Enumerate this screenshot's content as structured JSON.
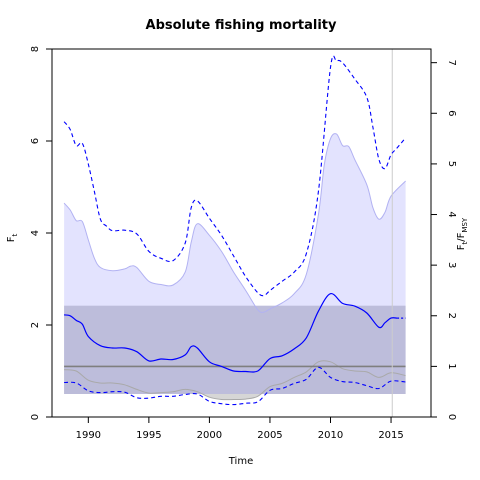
{
  "chart_data": {
    "type": "line",
    "title": "Absolute fishing mortality",
    "xlabel": "Time",
    "ylabel_left": {
      "main": "F",
      "sub": "t"
    },
    "ylabel_right": {
      "main": "F",
      "sub1": "t",
      "sep": "/F",
      "sub2": "MSY"
    },
    "xlim": [
      1987,
      2018.3
    ],
    "ylim_left": [
      0,
      8
    ],
    "ylim_right": [
      0,
      7.27
    ],
    "xticks": [
      "1990",
      "1995",
      "2000",
      "2005",
      "2010",
      "2015"
    ],
    "yticks_left": [
      "0",
      "2",
      "4",
      "6",
      "8"
    ],
    "yticks_right": [
      "0",
      "1",
      "2",
      "3",
      "4",
      "5",
      "6",
      "7"
    ],
    "grid": false,
    "vertical_line_x": 2015.1,
    "msy": {
      "value": 1.1,
      "lower": 0.5,
      "upper": 2.42,
      "end_x": 2016.2
    },
    "colors": {
      "median": "#0000ff",
      "ci_line": "#0000ff",
      "ci_fill": "#e3e3fe",
      "ci_fill_border": "#b2b2f2",
      "msy_band": "#bbbbd9",
      "msy_line": "#7f7f7f",
      "fmsy_fill": "#d6d6d6",
      "fmsy_border": "#a9a9a9",
      "vline": "#cccccc"
    },
    "series": [
      {
        "role": "median",
        "x": [
          1988,
          1988.5,
          1989,
          1989.5,
          1990,
          1991,
          1992,
          1993,
          1994,
          1995,
          1996,
          1997,
          1998,
          1998.5,
          1999,
          2000,
          2001,
          2002,
          2003,
          2004,
          2005,
          2006,
          2007,
          2008,
          2009,
          2010,
          2011,
          2012,
          2013,
          2014,
          2014.5,
          2015,
          2015.5,
          2016.2
        ],
        "values": [
          2.22,
          2.2,
          2.1,
          2.02,
          1.75,
          1.55,
          1.5,
          1.5,
          1.42,
          1.22,
          1.26,
          1.25,
          1.35,
          1.53,
          1.5,
          1.2,
          1.1,
          1.0,
          0.99,
          1.0,
          1.27,
          1.33,
          1.48,
          1.72,
          2.3,
          2.68,
          2.47,
          2.41,
          2.26,
          1.95,
          2.05,
          2.15,
          2.15,
          2.15
        ]
      },
      {
        "role": "ci_upper",
        "x": [
          1988,
          1988.5,
          1989,
          1989.5,
          1990,
          1990.5,
          1991,
          1991.5,
          1992,
          1993,
          1994,
          1995,
          1996,
          1997,
          1998,
          1998.5,
          1999,
          2000,
          2001,
          2002,
          2003,
          2004,
          2004.5,
          2005,
          2006,
          2007,
          2008,
          2009,
          2010,
          2010.5,
          2011,
          2012,
          2013,
          2013.5,
          2014,
          2014.5,
          2015,
          2015.5,
          2016.2
        ],
        "values": [
          6.42,
          6.25,
          5.9,
          5.95,
          5.5,
          4.9,
          4.3,
          4.15,
          4.05,
          4.06,
          3.98,
          3.6,
          3.45,
          3.4,
          3.78,
          4.55,
          4.7,
          4.32,
          3.95,
          3.5,
          3.05,
          2.7,
          2.64,
          2.75,
          2.95,
          3.15,
          3.55,
          4.9,
          7.6,
          7.74,
          7.7,
          7.35,
          6.95,
          6.3,
          5.6,
          5.4,
          5.7,
          5.85,
          6.07
        ]
      },
      {
        "role": "ci_lower",
        "x": [
          1988,
          1989,
          1990,
          1991,
          1992,
          1993,
          1994,
          1995,
          1996,
          1997,
          1998,
          1999,
          2000,
          2001,
          2002,
          2003,
          2004,
          2005,
          2006,
          2007,
          2008,
          2009,
          2010,
          2011,
          2012,
          2013,
          2014,
          2015,
          2016.2
        ],
        "values": [
          0.75,
          0.74,
          0.57,
          0.53,
          0.55,
          0.54,
          0.42,
          0.41,
          0.45,
          0.45,
          0.49,
          0.5,
          0.34,
          0.29,
          0.27,
          0.3,
          0.33,
          0.58,
          0.62,
          0.73,
          0.82,
          1.08,
          0.86,
          0.77,
          0.75,
          0.68,
          0.62,
          0.78,
          0.76
        ]
      },
      {
        "role": "ci_fill_upper",
        "x": [
          1988,
          1988.5,
          1989,
          1989.5,
          1990,
          1990.5,
          1991,
          1992,
          1993,
          1993.5,
          1994,
          1995,
          1996,
          1997,
          1998,
          1998.5,
          1999,
          2000,
          2001,
          2002,
          2003,
          2004,
          2004.5,
          2005,
          2006,
          2007,
          2008,
          2009,
          2009.5,
          2010,
          2010.5,
          2011,
          2011.5,
          2012,
          2013,
          2013.5,
          2014,
          2014.5,
          2015,
          2016.2
        ],
        "values": [
          4.65,
          4.5,
          4.27,
          4.25,
          3.85,
          3.45,
          3.25,
          3.18,
          3.22,
          3.28,
          3.25,
          2.95,
          2.88,
          2.87,
          3.15,
          3.8,
          4.2,
          3.95,
          3.6,
          3.15,
          2.75,
          2.33,
          2.28,
          2.35,
          2.48,
          2.68,
          3.1,
          4.4,
          5.5,
          6.05,
          6.15,
          5.9,
          5.88,
          5.6,
          5.05,
          4.55,
          4.3,
          4.45,
          4.8,
          5.13
        ]
      },
      {
        "role": "ci_fill_lower",
        "x": [
          1988,
          1989,
          1990,
          1991,
          1992,
          1993,
          1994,
          1995,
          1996,
          1997,
          1998,
          1999,
          2000,
          2001,
          2002,
          2003,
          2004,
          2005,
          2006,
          2007,
          2008,
          2009,
          2010,
          2011,
          2012,
          2013,
          2014,
          2015,
          2016.2
        ],
        "values": [
          1.03,
          1.0,
          0.8,
          0.74,
          0.74,
          0.7,
          0.6,
          0.52,
          0.53,
          0.55,
          0.6,
          0.55,
          0.43,
          0.38,
          0.38,
          0.39,
          0.45,
          0.66,
          0.73,
          0.86,
          0.98,
          1.2,
          1.2,
          1.05,
          1.0,
          0.98,
          0.86,
          0.96,
          0.9
        ]
      },
      {
        "role": "fmsy_fill_upper",
        "x": [
          1988,
          1989,
          1990,
          1991,
          1992,
          1993,
          1994,
          1995,
          1996,
          1997,
          1998,
          1999,
          2000,
          2001,
          2002,
          2003,
          2004,
          2005,
          2006,
          2007,
          2008,
          2009,
          2010,
          2011,
          2012,
          2013,
          2014,
          2015,
          2016.2
        ],
        "values": [
          1.03,
          1.0,
          0.8,
          0.74,
          0.74,
          0.7,
          0.6,
          0.52,
          0.53,
          0.55,
          0.6,
          0.55,
          0.43,
          0.38,
          0.38,
          0.39,
          0.45,
          0.66,
          0.73,
          0.86,
          0.98,
          1.2,
          1.2,
          1.05,
          1.0,
          0.98,
          0.86,
          0.96,
          0.9
        ]
      }
    ]
  }
}
